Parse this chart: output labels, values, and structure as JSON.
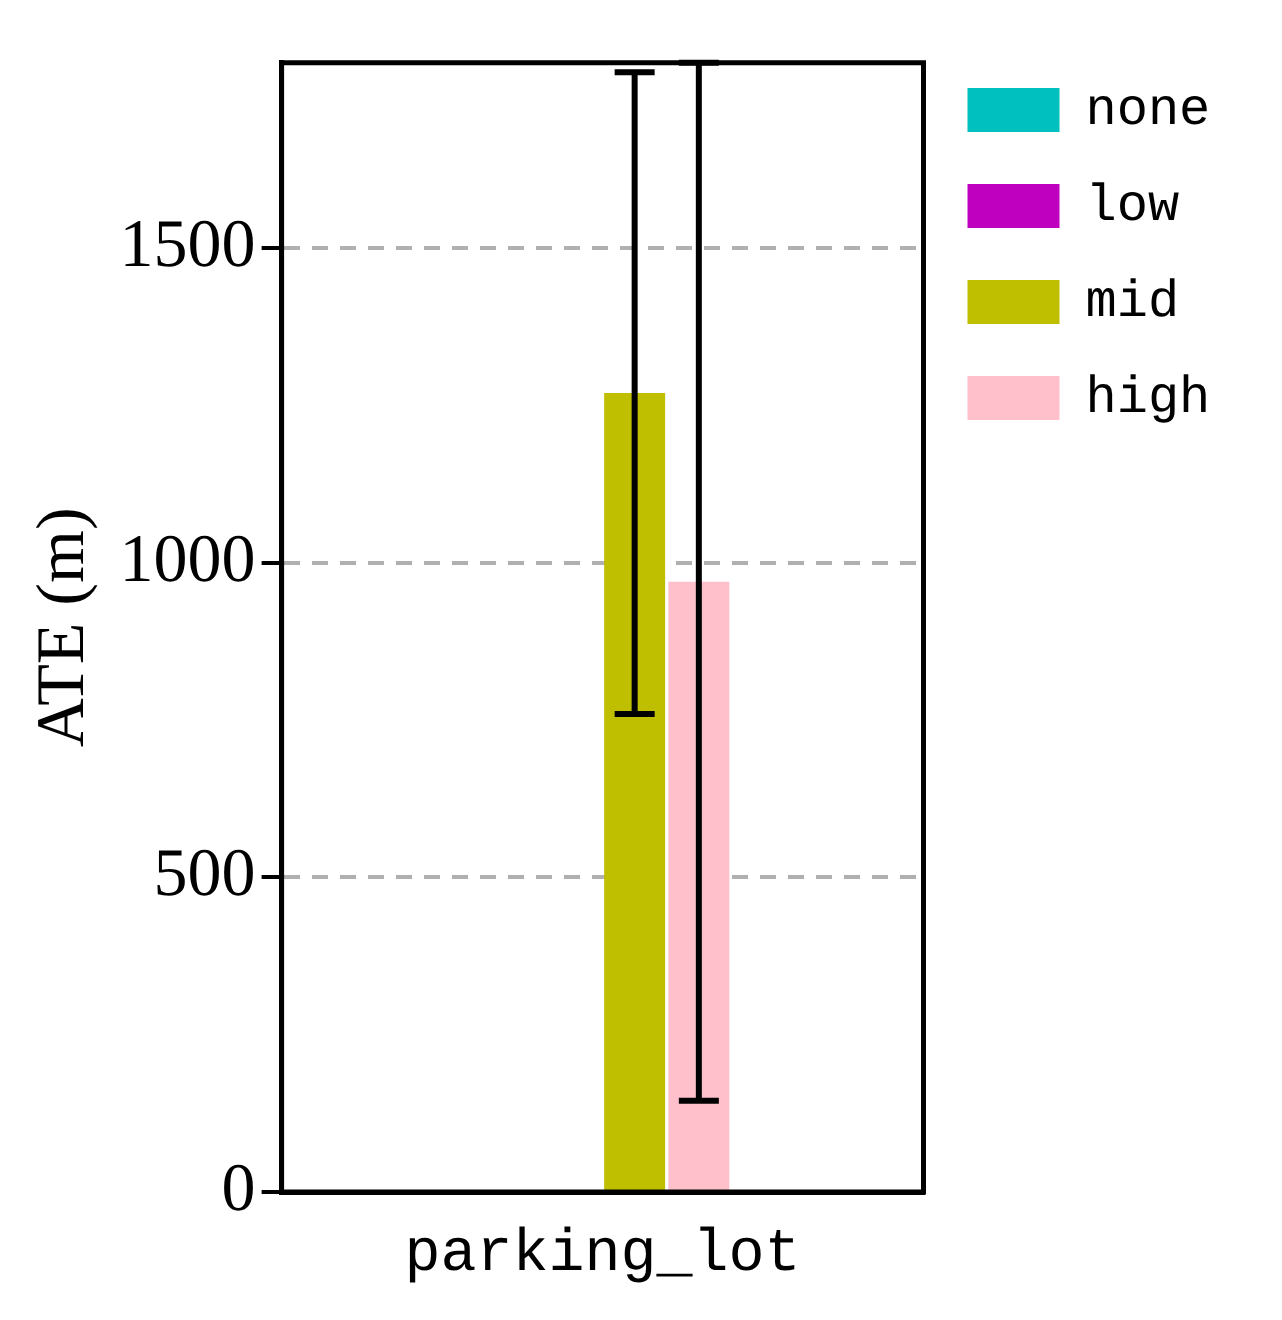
{
  "chart_data": {
    "type": "bar",
    "ylabel": "ATE (m)",
    "categories": [
      "parking_lot"
    ],
    "series": [
      {
        "name": "none",
        "color": "#00bfbf",
        "values": [
          2
        ],
        "errors": [
          null
        ]
      },
      {
        "name": "low",
        "color": "#bf00bf",
        "values": [
          2
        ],
        "errors": [
          null
        ]
      },
      {
        "name": "mid",
        "color": "#bfbf00",
        "values": [
          1270
        ],
        "errors": [
          510
        ]
      },
      {
        "name": "high",
        "color": "#ffc0cb",
        "values": [
          970
        ],
        "errors": [
          825
        ]
      }
    ],
    "ylim": [
      0,
      1795
    ],
    "yticks": [
      0,
      500,
      1000,
      1500
    ],
    "grid": "y",
    "legend": "right"
  }
}
